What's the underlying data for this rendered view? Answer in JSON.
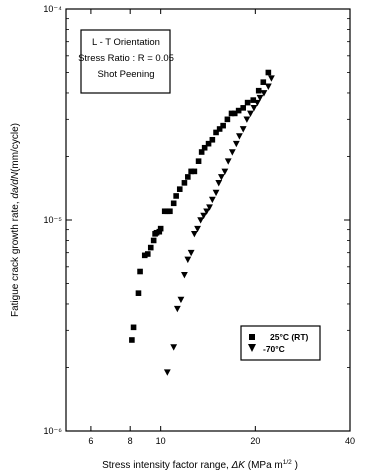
{
  "chart_data": {
    "type": "scatter",
    "xscale": "log",
    "yscale": "log",
    "xlim": [
      5,
      40
    ],
    "ylim": [
      1e-06,
      0.0001
    ],
    "xticks": [
      {
        "value": 6,
        "label": "6"
      },
      {
        "value": 8,
        "label": "8"
      },
      {
        "value": 10,
        "label": "10"
      },
      {
        "value": 20,
        "label": "20"
      },
      {
        "value": 40,
        "label": "40"
      }
    ],
    "yticks": [
      {
        "value": 1e-06,
        "label": "10⁻⁶"
      },
      {
        "value": 1e-05,
        "label": "10⁻⁵"
      },
      {
        "value": 0.0001,
        "label": "10⁻⁴"
      }
    ],
    "xlabel_prefix": "Stress intensity factor range, ",
    "xlabel_symbol": "ΔK",
    "xlabel_unit": " (MPa m",
    "xlabel_exp": "1/2",
    "xlabel_close": " )",
    "ylabel_prefix": "Fatigue crack growth rate, ",
    "ylabel_symbol": "da/dN",
    "ylabel_unit": "(mm/cycle)",
    "annotation_lines": [
      "L - T Orientation",
      "Stress Ratio : R = 0.05",
      "Shot Peening"
    ],
    "legend_position": "right-center",
    "series": [
      {
        "name": "25°C (RT)",
        "marker": "square",
        "x": [
          8.1,
          8.2,
          8.5,
          8.6,
          8.9,
          9.1,
          9.3,
          9.5,
          9.6,
          9.7,
          9.9,
          10.0,
          10.3,
          10.5,
          10.7,
          11.0,
          11.2,
          11.5,
          11.9,
          12.2,
          12.5,
          12.8,
          13.2,
          13.5,
          13.8,
          14.2,
          14.6,
          15.0,
          15.4,
          15.8,
          16.3,
          16.8,
          17.2,
          17.7,
          18.3,
          18.9,
          19.7,
          20.5,
          21.2,
          22.0
        ],
        "y": [
          2.7e-06,
          3.1e-06,
          4.5e-06,
          5.7e-06,
          6.8e-06,
          6.9e-06,
          7.4e-06,
          8e-06,
          8.6e-06,
          8.7e-06,
          8.8e-06,
          9.1e-06,
          1.1e-05,
          1.1e-05,
          1.1e-05,
          1.2e-05,
          1.3e-05,
          1.4e-05,
          1.5e-05,
          1.6e-05,
          1.7e-05,
          1.7e-05,
          1.9e-05,
          2.1e-05,
          2.2e-05,
          2.3e-05,
          2.4e-05,
          2.6e-05,
          2.7e-05,
          2.8e-05,
          3e-05,
          3.2e-05,
          3.2e-05,
          3.3e-05,
          3.4e-05,
          3.6e-05,
          3.7e-05,
          4.1e-05,
          4.5e-05,
          5e-05
        ]
      },
      {
        "name": "-70°C",
        "marker": "triangle-down",
        "x": [
          10.5,
          11.0,
          11.3,
          11.6,
          11.9,
          12.2,
          12.5,
          12.8,
          13.1,
          13.4,
          13.7,
          14.0,
          14.3,
          14.6,
          15.0,
          15.3,
          15.6,
          16.0,
          16.4,
          16.9,
          17.4,
          17.8,
          18.3,
          18.8,
          19.3,
          19.8,
          20.3,
          20.7,
          21.3,
          22.0,
          22.5
        ],
        "y": [
          1.9e-06,
          2.5e-06,
          3.8e-06,
          4.2e-06,
          5.5e-06,
          6.5e-06,
          7e-06,
          8.6e-06,
          9.1e-06,
          1e-05,
          1.05e-05,
          1.1e-05,
          1.15e-05,
          1.25e-05,
          1.35e-05,
          1.5e-05,
          1.6e-05,
          1.7e-05,
          1.9e-05,
          2.1e-05,
          2.3e-05,
          2.5e-05,
          2.7e-05,
          3e-05,
          3.2e-05,
          3.4e-05,
          3.6e-05,
          3.8e-05,
          4e-05,
          4.3e-05,
          4.7e-05
        ]
      }
    ]
  }
}
